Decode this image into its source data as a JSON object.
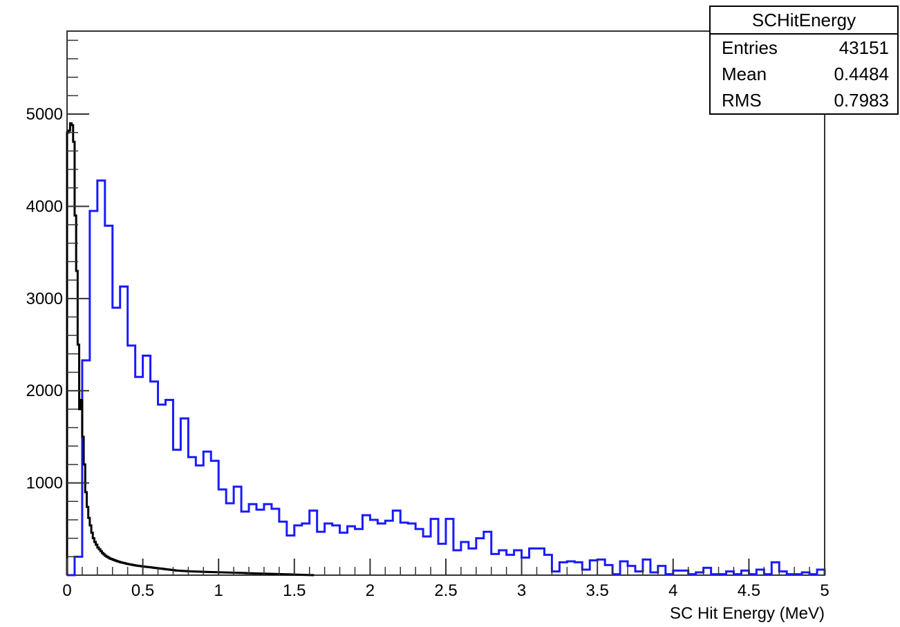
{
  "stats": {
    "title": "SCHitEnergy",
    "rows": [
      {
        "label": "Entries",
        "value": "43151"
      },
      {
        "label": "Mean",
        "value": "0.4484"
      },
      {
        "label": "RMS",
        "value": "0.7983"
      }
    ]
  },
  "chart_data": {
    "type": "histogram",
    "title": "",
    "xlabel": "SC Hit Energy (MeV)",
    "ylabel": "",
    "xlim": [
      0,
      5
    ],
    "ylim": [
      0,
      5900
    ],
    "x_ticks": [
      "0",
      "0.5",
      "1",
      "1.5",
      "2",
      "2.5",
      "3",
      "3.5",
      "4",
      "4.5",
      "5"
    ],
    "y_ticks": [
      "1000",
      "2000",
      "3000",
      "4000",
      "5000"
    ],
    "grid": false,
    "series": [
      {
        "color": "#1a1aff",
        "bin_width": 0.05,
        "values": [
          0,
          200,
          2330,
          3950,
          4280,
          3790,
          2900,
          3130,
          2490,
          2150,
          2380,
          2100,
          1850,
          1900,
          1360,
          1700,
          1280,
          1190,
          1340,
          1240,
          930,
          780,
          960,
          690,
          770,
          710,
          770,
          720,
          580,
          430,
          540,
          560,
          700,
          470,
          560,
          540,
          460,
          530,
          500,
          650,
          600,
          560,
          590,
          700,
          570,
          560,
          500,
          420,
          610,
          340,
          610,
          270,
          360,
          290,
          400,
          470,
          230,
          270,
          220,
          270,
          190,
          290,
          290,
          220,
          40,
          140,
          150,
          140,
          60,
          160,
          170,
          110,
          10,
          150,
          100,
          40,
          170,
          30,
          100,
          10,
          50,
          50,
          10,
          30,
          80,
          10,
          10,
          40,
          10,
          50,
          10,
          60,
          10,
          140,
          40,
          10,
          10,
          30,
          10,
          60
        ]
      },
      {
        "color": "#000000",
        "bin_width": 0.01,
        "values": [
          4800,
          4820,
          4900,
          4880,
          4700,
          3900,
          3300,
          2500,
          1800,
          1900,
          1500,
          1200,
          900,
          740,
          620,
          540,
          460,
          400,
          360,
          330,
          300,
          280,
          260,
          240,
          225,
          210,
          200,
          190,
          180,
          175,
          168,
          162,
          156,
          150,
          145,
          140,
          136,
          132,
          128,
          124,
          120,
          117,
          114,
          111,
          108,
          105,
          102,
          100,
          98,
          96,
          94,
          92,
          90,
          88,
          86,
          84,
          82,
          80,
          78,
          76,
          74,
          72,
          70,
          68,
          66,
          64,
          62,
          60,
          58,
          56,
          54,
          52,
          50,
          49,
          48,
          47,
          46,
          45,
          44,
          43,
          42,
          41,
          40,
          40,
          39,
          39,
          38,
          38,
          37,
          37,
          36,
          36,
          35,
          35,
          34,
          34,
          33,
          33,
          32,
          32,
          31,
          31,
          30,
          30,
          29,
          29,
          28,
          28,
          27,
          27,
          26,
          26,
          25,
          25,
          24,
          24,
          23,
          23,
          22,
          22,
          21,
          21,
          20,
          20,
          19,
          19,
          18,
          18,
          17,
          17,
          16,
          16,
          15,
          15,
          14,
          14,
          13,
          13,
          12,
          12,
          11,
          11,
          10,
          10,
          9,
          9,
          8,
          8,
          7,
          7,
          6,
          6,
          5,
          5,
          4,
          4,
          3,
          3,
          2,
          2,
          1,
          1,
          0
        ]
      }
    ]
  }
}
